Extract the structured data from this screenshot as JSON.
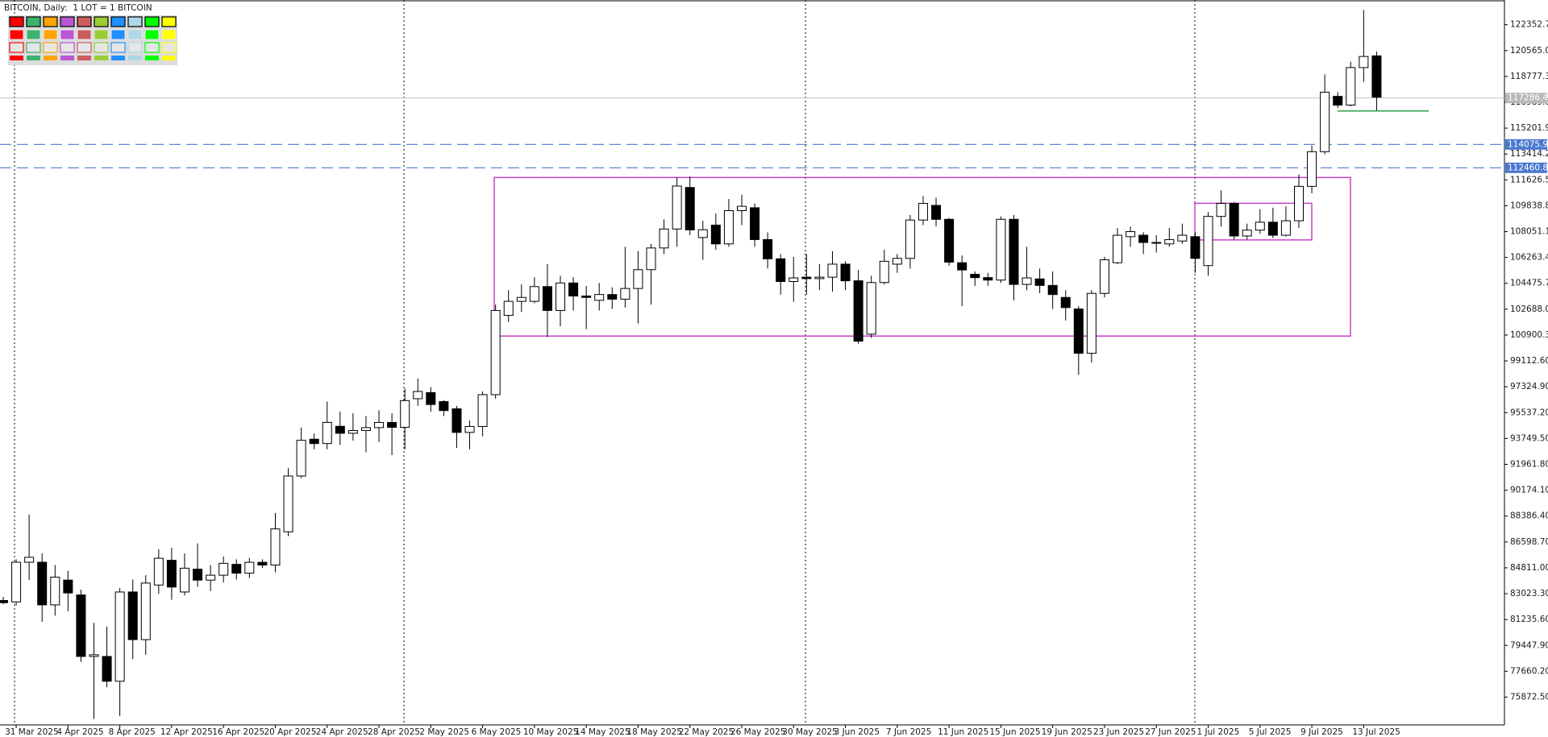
{
  "chart_data": {
    "type": "candlestick",
    "title": "BITCOIN, Daily:  1 LOT = 1 BITCOIN",
    "categories": [
      null,
      "31 Mar 2025",
      null,
      null,
      null,
      "4 Apr 2025",
      null,
      null,
      null,
      "8 Apr 2025",
      null,
      null,
      null,
      "12 Apr 2025",
      null,
      null,
      null,
      "16 Apr 2025",
      null,
      null,
      null,
      "20 Apr 2025",
      null,
      null,
      null,
      "24 Apr 2025",
      null,
      null,
      null,
      "28 Apr 2025",
      null,
      null,
      null,
      "2 May 2025",
      null,
      null,
      null,
      "6 May 2025",
      null,
      null,
      null,
      "10 May 2025",
      null,
      null,
      null,
      "14 May 2025",
      null,
      null,
      null,
      "18 May 2025",
      null,
      null,
      null,
      "22 May 2025",
      null,
      null,
      null,
      "26 May 2025",
      null,
      null,
      null,
      "30 May 2025",
      null,
      null,
      null,
      "3 Jun 2025",
      null,
      null,
      null,
      "7 Jun 2025",
      null,
      null,
      null,
      "11 Jun 2025",
      null,
      null,
      null,
      "15 Jun 2025",
      null,
      null,
      null,
      "19 Jun 2025",
      null,
      null,
      null,
      "23 Jun 2025",
      null,
      null,
      null,
      "27 Jun 2025",
      null,
      null,
      null,
      "1 Jul 2025",
      null,
      null,
      null,
      "5 Jul 2025",
      null,
      null,
      null,
      "9 Jul 2025",
      null,
      null,
      null,
      "13 Jul 2025",
      null
    ],
    "open": [
      82550,
      82453,
      85195,
      85195,
      82248,
      83962,
      82933,
      78683,
      78683,
      76969,
      83139,
      79847,
      83620,
      85330,
      83139,
      84716,
      83960,
      84300,
      85050,
      84440,
      85190,
      85000,
      87300,
      91156,
      93700,
      93400,
      94590,
      94110,
      94300,
      94500,
      94860,
      94520,
      96500,
      96920,
      96300,
      95800,
      94170,
      94580,
      96780,
      102260,
      103230,
      103230,
      104250,
      102600,
      104500,
      103600,
      103300,
      103700,
      103380,
      104120,
      105420,
      106920,
      108230,
      111100,
      107640,
      108500,
      107200,
      109500,
      109700,
      107500,
      106170,
      104600,
      104900,
      104800,
      104900,
      105800,
      104650,
      100960,
      104530,
      105800,
      106200,
      108850,
      109860,
      108900,
      105900,
      105100,
      104870,
      104700,
      108900,
      104400,
      104780,
      104330,
      103500,
      102700,
      99640,
      103780,
      105900,
      107700,
      107800,
      107300,
      107200,
      107400,
      107700,
      105700,
      109100,
      110000,
      107750,
      108150,
      108700,
      107800,
      108800,
      111180,
      113575,
      117400,
      116800,
      119388,
      120200
    ],
    "high": [
      82800,
      85400,
      88485,
      85800,
      85000,
      84600,
      83300,
      81000,
      80740,
      83400,
      84000,
      84300,
      86100,
      86200,
      85800,
      86500,
      85000,
      85600,
      85400,
      85500,
      85400,
      88600,
      91700,
      94500,
      94100,
      96300,
      95600,
      95500,
      95300,
      95700,
      95500,
      97200,
      97900,
      97300,
      96400,
      96000,
      95000,
      97000,
      103000,
      104000,
      104400,
      104900,
      105800,
      105000,
      104900,
      104300,
      104500,
      104200,
      107000,
      106700,
      107200,
      108900,
      111800,
      111860,
      108800,
      109300,
      110300,
      110600,
      110000,
      108000,
      106500,
      106300,
      106500,
      105800,
      106700,
      106000,
      105400,
      105000,
      106800,
      106500,
      109200,
      110500,
      110400,
      109000,
      106400,
      105300,
      105200,
      109100,
      109200,
      107000,
      105500,
      105300,
      104000,
      102900,
      104000,
      106300,
      108300,
      108400,
      108000,
      107800,
      108300,
      108600,
      108000,
      109400,
      110900,
      110100,
      108600,
      109600,
      109700,
      109800,
      112000,
      114000,
      118920,
      117700,
      119800,
      123378,
      120500
    ],
    "low": [
      82300,
      82200,
      83962,
      81083,
      81500,
      81800,
      78300,
      74365,
      76558,
      74570,
      78500,
      78800,
      83000,
      82600,
      82900,
      83500,
      83200,
      83800,
      84000,
      84100,
      84800,
      84500,
      87000,
      91000,
      93000,
      93000,
      93300,
      93600,
      92800,
      93500,
      92600,
      93000,
      96000,
      95600,
      95300,
      93100,
      93000,
      93900,
      96500,
      101800,
      102500,
      103100,
      100760,
      101500,
      102600,
      101300,
      102600,
      102700,
      102800,
      101700,
      103000,
      106500,
      107000,
      107800,
      106100,
      106800,
      107000,
      108500,
      107000,
      105500,
      103700,
      103200,
      103700,
      104000,
      103900,
      104000,
      100300,
      100700,
      104400,
      105200,
      105500,
      108500,
      108400,
      105700,
      102900,
      104300,
      104300,
      104500,
      103300,
      104000,
      103800,
      102700,
      101900,
      98150,
      99000,
      103500,
      105800,
      107000,
      106500,
      106600,
      107000,
      107200,
      105200,
      105000,
      108400,
      107500,
      107500,
      107900,
      107600,
      107700,
      108300,
      110700,
      113400,
      116600,
      116700,
      118400,
      116386
    ],
    "close": [
      82400,
      85195,
      85537,
      82248,
      84167,
      83071,
      78683,
      78800,
      76969,
      83139,
      79847,
      83756,
      85470,
      83481,
      84784,
      83960,
      84300,
      85120,
      84440,
      85190,
      85000,
      87500,
      91156,
      93627,
      93400,
      94862,
      94110,
      94300,
      94500,
      94860,
      94520,
      96370,
      97000,
      96100,
      95680,
      94170,
      94580,
      96780,
      102600,
      103230,
      103500,
      104250,
      102600,
      104500,
      103600,
      103500,
      103700,
      103380,
      104120,
      105420,
      106920,
      108230,
      111200,
      108170,
      108180,
      107200,
      109500,
      109800,
      107500,
      106170,
      104600,
      104850,
      104800,
      104900,
      105800,
      104650,
      100480,
      104530,
      106000,
      106200,
      108850,
      110000,
      108900,
      105940,
      105400,
      104870,
      104700,
      108900,
      104400,
      104850,
      104330,
      103700,
      102800,
      99640,
      103780,
      106100,
      107800,
      108050,
      107300,
      107250,
      107500,
      107800,
      106200,
      109100,
      110000,
      107748,
      108150,
      108700,
      107800,
      108800,
      111180,
      113575,
      117688,
      116795,
      119388,
      120156,
      117345
    ],
    "up_color": "#ffffff",
    "down_color": "#000000",
    "ylim": [
      73950,
      124060
    ],
    "yticks": [
      {
        "value": 122352.7,
        "label": "122352.70"
      },
      {
        "value": 120565.0,
        "label": "120565.00"
      },
      {
        "value": 118777.3,
        "label": "118777.30"
      },
      {
        "value": 116989.6,
        "label": "116989.60"
      },
      {
        "value": 115201.9,
        "label": "115201.90"
      },
      {
        "value": 113414.2,
        "label": "113414.20"
      },
      {
        "value": 111626.5,
        "label": "111626.50"
      },
      {
        "value": 109838.8,
        "label": "109838.80"
      },
      {
        "value": 108051.1,
        "label": "108051.10"
      },
      {
        "value": 106263.4,
        "label": "106263.40"
      },
      {
        "value": 104475.7,
        "label": "104475.70"
      },
      {
        "value": 102688.0,
        "label": "102688.00"
      },
      {
        "value": 100900.3,
        "label": "100900.30"
      },
      {
        "value": 99112.6,
        "label": "99112.60"
      },
      {
        "value": 97324.9,
        "label": "97324.90"
      },
      {
        "value": 95537.2,
        "label": "95537.20"
      },
      {
        "value": 93749.5,
        "label": "93749.50"
      },
      {
        "value": 91961.8,
        "label": "91961.80"
      },
      {
        "value": 90174.1,
        "label": "90174.10"
      },
      {
        "value": 88386.4,
        "label": "88386.40"
      },
      {
        "value": 86598.7,
        "label": "86598.70"
      },
      {
        "value": 84811.0,
        "label": "84811.00"
      },
      {
        "value": 83023.3,
        "label": "83023.30"
      },
      {
        "value": 81235.6,
        "label": "81235.60"
      },
      {
        "value": 79447.9,
        "label": "79447.90"
      },
      {
        "value": 77660.2,
        "label": "77660.20"
      },
      {
        "value": 75872.5,
        "label": "75872.50"
      }
    ],
    "levels": [
      114075.95,
      112460.81
    ],
    "level_color": "#4a78d0",
    "current_price": 117286.48,
    "support_line": 116390,
    "support_color": "#2e9e4a",
    "boxes": [
      {
        "top": 111790,
        "bottom": 100830
      },
      {
        "top": 110010,
        "bottom": 107475
      }
    ],
    "box_color": "#c840c8"
  }
}
